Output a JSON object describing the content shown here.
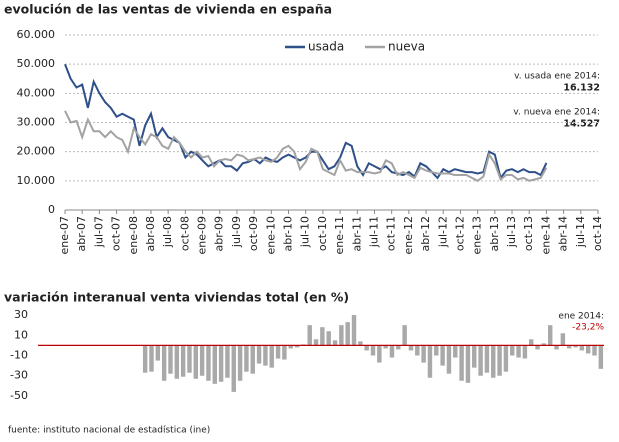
{
  "chart_data": [
    {
      "type": "line",
      "title": "evolución de las ventas de vivienda en españa",
      "categories": [
        "ene-07",
        null,
        null,
        "abr-07",
        null,
        null,
        "jul-07",
        null,
        null,
        "oct-07",
        null,
        null,
        "ene-08",
        null,
        null,
        "abr-08",
        null,
        null,
        "jul-08",
        null,
        null,
        "oct-08",
        null,
        null,
        "ene-09",
        null,
        null,
        "abr-09",
        null,
        null,
        "jul-09",
        null,
        null,
        "oct-09",
        null,
        null,
        "ene-10",
        null,
        null,
        "abr-10",
        null,
        null,
        "jul-10",
        null,
        null,
        "oct-10",
        null,
        null,
        "ene-11",
        null,
        null,
        "abr-11",
        null,
        null,
        "jul-11",
        null,
        null,
        "oct-11",
        null,
        null,
        "ene-12",
        null,
        null,
        "abr-12",
        null,
        null,
        "jul-12",
        null,
        null,
        "oct-12",
        null,
        null,
        "ene-13",
        null,
        null,
        "abr-13",
        null,
        null,
        "jul-13",
        null,
        null,
        "oct-13",
        null,
        null,
        "ene-14",
        null,
        null,
        "abr-14",
        null,
        null,
        "jul-14",
        null,
        null,
        "oct-14"
      ],
      "series": [
        {
          "name": "usada",
          "color": "#2f5089",
          "values": [
            50000,
            45000,
            42000,
            43000,
            35000,
            44000,
            40000,
            37000,
            35000,
            32000,
            33000,
            32000,
            31000,
            22000,
            29000,
            33000,
            25000,
            28000,
            25000,
            24000,
            23000,
            18000,
            20000,
            19000,
            17000,
            15000,
            16000,
            17000,
            15000,
            15000,
            13500,
            16000,
            16500,
            17500,
            16000,
            18000,
            17000,
            16500,
            18000,
            19000,
            18000,
            17000,
            18000,
            20000,
            20000,
            17000,
            14000,
            15000,
            18000,
            23000,
            22000,
            15000,
            12000,
            16000,
            15000,
            14000,
            15000,
            13000,
            12500,
            12000,
            13000,
            11500,
            16000,
            15000,
            13000,
            11000,
            14000,
            13000,
            14000,
            13500,
            13000,
            13000,
            12500,
            13000,
            20000,
            19000,
            11000,
            13500,
            14000,
            13000,
            14000,
            13000,
            13000,
            12000,
            16132,
            null,
            null,
            null,
            null,
            null,
            null,
            null,
            null,
            null
          ]
        },
        {
          "name": "nueva",
          "color": "#a3a3a3",
          "values": [
            34000,
            30000,
            30500,
            25000,
            31000,
            27000,
            27000,
            25000,
            27000,
            25000,
            24000,
            20000,
            28000,
            25000,
            22500,
            26000,
            25000,
            22000,
            21000,
            25000,
            23000,
            20000,
            18000,
            20000,
            18000,
            18500,
            15000,
            17000,
            17500,
            17000,
            19000,
            18500,
            17000,
            17500,
            18000,
            17000,
            16500,
            18000,
            21000,
            22000,
            20000,
            14000,
            16500,
            21000,
            20000,
            14000,
            13000,
            12000,
            17000,
            13500,
            14000,
            13000,
            13000,
            13000,
            12500,
            13000,
            17000,
            16000,
            12000,
            13000,
            12000,
            11000,
            14500,
            13500,
            13000,
            12500,
            12500,
            12500,
            12000,
            12000,
            12000,
            11000,
            10000,
            11500,
            19000,
            16000,
            10500,
            12000,
            12000,
            10500,
            11000,
            10000,
            10500,
            11000,
            14527,
            null,
            null,
            null,
            null,
            null,
            null,
            null,
            null,
            null
          ]
        }
      ],
      "ylim": [
        0,
        60000
      ],
      "yticks": [
        0,
        {
          "value": 10000,
          "label": "10.000"
        },
        {
          "value": 20000,
          "label": "20.000"
        },
        {
          "value": 30000,
          "label": "30.000"
        },
        {
          "value": 40000,
          "label": "40.000"
        },
        {
          "value": 50000,
          "label": "50.000"
        },
        {
          "value": 60000,
          "label": "60.000"
        }
      ],
      "grid": true,
      "annotations": [
        "v. usada ene 2014:",
        "16.132",
        "v. nueva ene 2014:",
        "14.527"
      ]
    },
    {
      "type": "bar",
      "title": "variación interanual venta viviendas total (en %)",
      "color": "#a9a9a9",
      "values": [
        -27,
        -26,
        -15,
        -35,
        -28,
        -33,
        -31,
        -27,
        -33,
        -30,
        -35,
        -38,
        -36,
        -32,
        -46,
        -35,
        -26,
        -28,
        -18,
        -20,
        -22,
        -13,
        -14,
        -3,
        -2,
        1,
        20,
        6,
        18,
        14,
        5,
        20,
        23,
        30,
        4,
        -5,
        -10,
        -17,
        -3,
        -12,
        -4,
        20,
        -5,
        -10,
        -17,
        -32,
        -10,
        -20,
        -28,
        -12,
        -35,
        -37,
        -22,
        -30,
        -27,
        -32,
        -30,
        -26,
        -10,
        -12,
        -13,
        6,
        -4,
        2,
        20,
        -4,
        12,
        -3,
        -2,
        -5,
        -8,
        -10,
        -23.2
      ],
      "ylim": [
        -55,
        35
      ],
      "yticks": [
        30,
        10,
        -10,
        -30,
        -50
      ],
      "annotations": [
        "ene 2014:",
        "-23,2%"
      ]
    },
    {
      "source": "fuente: instituto nacional de estadística (ine)"
    }
  ]
}
